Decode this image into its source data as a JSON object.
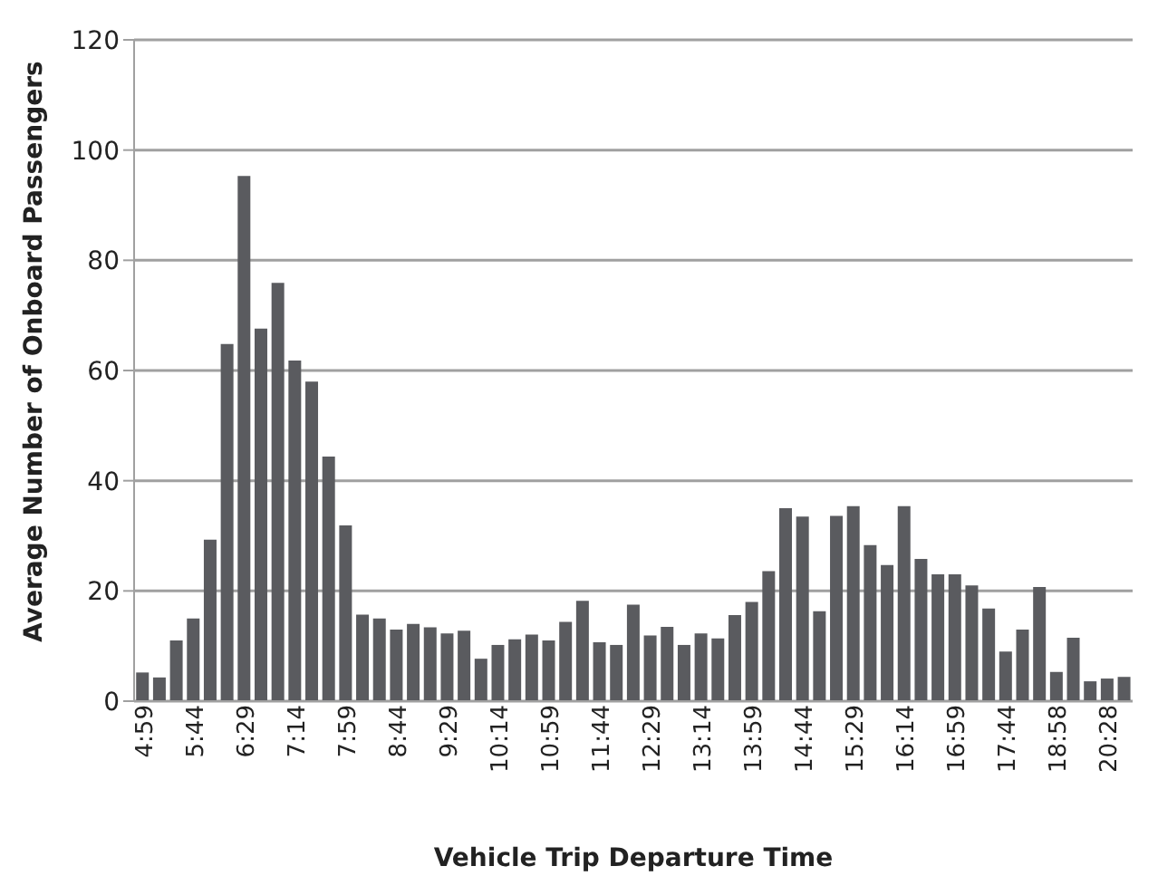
{
  "chart_data": {
    "type": "bar",
    "xlabel": "Vehicle Trip Departure Time",
    "ylabel": "Average Number of Onboard Passengers",
    "categories": [
      "4:59",
      null,
      null,
      "5:44",
      null,
      null,
      "6:29",
      null,
      null,
      "7:14",
      null,
      null,
      "7:59",
      null,
      null,
      "8:44",
      null,
      null,
      "9:29",
      null,
      null,
      "10:14",
      null,
      null,
      "10:59",
      null,
      null,
      "11:44",
      null,
      null,
      "12:29",
      null,
      null,
      "13:14",
      null,
      null,
      "13:59",
      null,
      null,
      "14:44",
      null,
      null,
      "15:29",
      null,
      null,
      "16:14",
      null,
      null,
      "16:59",
      null,
      null,
      "17:44",
      null,
      null,
      "18:58",
      null,
      null,
      "20:28",
      null
    ],
    "values": [
      5.2,
      4.3,
      11,
      15,
      29.3,
      64.8,
      95.3,
      67.6,
      75.9,
      61.8,
      58,
      44.4,
      31.9,
      15.7,
      15,
      13,
      14,
      13.4,
      12.3,
      12.8,
      7.7,
      10.2,
      11.2,
      12.1,
      11,
      14.4,
      18.2,
      10.7,
      10.2,
      17.5,
      11.9,
      13.5,
      10.2,
      12.3,
      11.4,
      15.6,
      18,
      23.6,
      35,
      33.5,
      16.3,
      33.6,
      35.4,
      28.3,
      24.7,
      35.4,
      25.8,
      23,
      23,
      21,
      16.8,
      9,
      13,
      20.7,
      5.3,
      11.5,
      3.6,
      4.1,
      4.4
    ],
    "color": "#5a5b5f",
    "ylim": [
      0,
      120
    ],
    "yticks": [
      0,
      20,
      40,
      60,
      80,
      100,
      120
    ],
    "grid": "y",
    "legend": false
  }
}
